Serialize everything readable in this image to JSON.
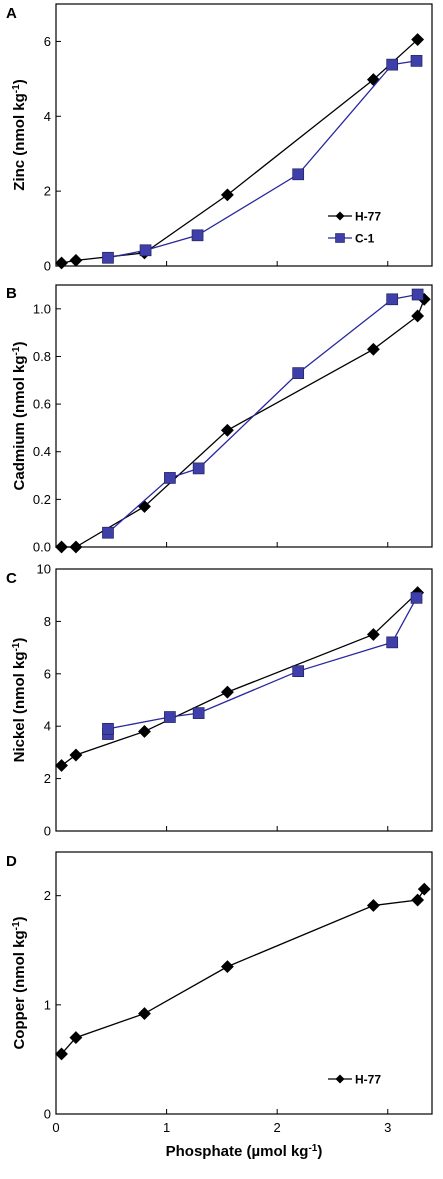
{
  "chart_data": [
    {
      "panel": "A",
      "type": "line",
      "ylabel": "Zinc (nmol kg",
      "ylabel_sup": "-1",
      "ylabel_tail": ")",
      "xlim": [
        0,
        3.4
      ],
      "ylim": [
        0,
        7
      ],
      "yticks": [
        0,
        2,
        4,
        6
      ],
      "ytick_labels": [
        "0",
        "2",
        "4",
        "6"
      ],
      "legend": "bottom-right",
      "series": [
        {
          "name": "H-77",
          "marker": "diamond",
          "color": "#000000",
          "line_color": "#000000",
          "x": [
            0.05,
            0.18,
            0.8,
            1.55,
            2.87,
            3.27
          ],
          "y": [
            0.08,
            0.15,
            0.35,
            1.9,
            4.98,
            6.05
          ]
        },
        {
          "name": "C-1",
          "marker": "square",
          "color": "#3f3faa",
          "line_color": "#28289e",
          "x": [
            0.47,
            0.81,
            1.28,
            2.19,
            3.04,
            3.26
          ],
          "y": [
            0.22,
            0.42,
            0.82,
            2.45,
            5.38,
            5.48
          ]
        }
      ]
    },
    {
      "panel": "B",
      "type": "line",
      "ylabel": "Cadmium (nmol kg",
      "ylabel_sup": "-1",
      "ylabel_tail": ")",
      "xlim": [
        0,
        3.4
      ],
      "ylim": [
        0,
        1.1
      ],
      "yticks": [
        0,
        0.2,
        0.4,
        0.6,
        0.8,
        1.0
      ],
      "ytick_labels": [
        "0.0",
        "0.2",
        "0.4",
        "0.6",
        "0.8",
        "1.0"
      ],
      "series": [
        {
          "name": "H-77",
          "marker": "diamond",
          "color": "#000000",
          "line_color": "#000000",
          "x": [
            0.05,
            0.18,
            0.8,
            1.55,
            2.87,
            3.27,
            3.33
          ],
          "y": [
            0.0,
            0.0,
            0.17,
            0.49,
            0.83,
            0.97,
            1.04
          ]
        },
        {
          "name": "C-1",
          "marker": "square",
          "color": "#3f3faa",
          "line_color": "#28289e",
          "x": [
            0.47,
            1.03,
            1.29,
            2.19,
            3.04,
            3.27
          ],
          "y": [
            0.06,
            0.29,
            0.33,
            0.73,
            1.04,
            1.06
          ]
        }
      ]
    },
    {
      "panel": "C",
      "type": "line",
      "ylabel": "Nickel (nmol kg",
      "ylabel_sup": "-1",
      "ylabel_tail": ")",
      "xlim": [
        0,
        3.4
      ],
      "ylim": [
        0,
        10
      ],
      "yticks": [
        0,
        2,
        4,
        6,
        8,
        10
      ],
      "ytick_labels": [
        "0",
        "2",
        "4",
        "6",
        "8",
        "10"
      ],
      "series": [
        {
          "name": "H-77",
          "marker": "diamond",
          "color": "#000000",
          "line_color": "#000000",
          "x": [
            0.05,
            0.18,
            0.8,
            1.55,
            2.87,
            3.27
          ],
          "y": [
            2.5,
            2.9,
            3.8,
            5.3,
            7.5,
            9.1
          ]
        },
        {
          "name": "C-1",
          "marker": "square",
          "color": "#3f3faa",
          "line_color": "#28289e",
          "x": [
            0.47,
            0.47,
            1.03,
            1.29,
            2.19,
            3.04,
            3.26
          ],
          "y": [
            3.7,
            3.9,
            4.35,
            4.5,
            6.1,
            7.2,
            8.9
          ]
        }
      ]
    },
    {
      "panel": "D",
      "type": "line",
      "ylabel": "Copper  (nmol kg",
      "ylabel_sup": "-1",
      "ylabel_tail": ")",
      "xlabel": "Phosphate (µmol kg",
      "xlabel_sup": "-1",
      "xlabel_tail": ")",
      "xlim": [
        0,
        3.4
      ],
      "ylim": [
        0,
        2.4
      ],
      "yticks": [
        0,
        1,
        2
      ],
      "ytick_labels": [
        "0",
        "1",
        "2"
      ],
      "xticks": [
        0,
        1,
        2,
        3
      ],
      "xtick_labels": [
        "0",
        "1",
        "2",
        "3"
      ],
      "legend": "bottom-right",
      "series": [
        {
          "name": "H-77",
          "marker": "diamond",
          "color": "#000000",
          "line_color": "#000000",
          "x": [
            0.05,
            0.18,
            0.8,
            1.55,
            2.87,
            3.27,
            3.33
          ],
          "y": [
            0.55,
            0.7,
            0.92,
            1.35,
            1.91,
            1.96,
            2.06
          ]
        }
      ]
    }
  ]
}
